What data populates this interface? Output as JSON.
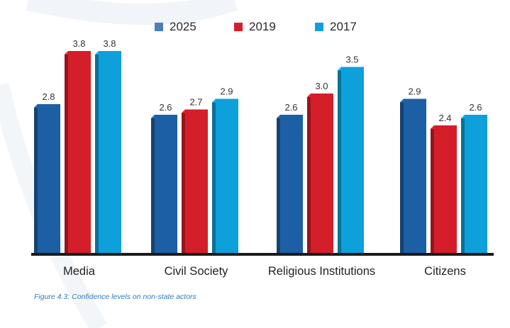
{
  "chart_data": {
    "type": "bar",
    "categories": [
      "Media",
      "Civil Society",
      "Religious Institutions",
      "Citizens"
    ],
    "series": [
      {
        "name": "2025",
        "values": [
          2.8,
          2.6,
          2.6,
          2.9
        ],
        "color": "#1d5fa4"
      },
      {
        "name": "2019",
        "values": [
          3.8,
          2.7,
          3.0,
          2.4
        ],
        "color": "#d41f2a"
      },
      {
        "name": "2017",
        "values": [
          3.8,
          2.9,
          3.5,
          2.6
        ],
        "color": "#0ea0da"
      }
    ],
    "value_labels": [
      [
        "2.8",
        "2.6",
        "2.6",
        "2.9"
      ],
      [
        "3.8",
        "2.7",
        "3.0",
        "2.4"
      ],
      [
        "3.8",
        "2.9",
        "3.5",
        "2.6"
      ]
    ],
    "ylim": [
      0,
      4
    ],
    "grid": false,
    "legend_position": "top-center"
  },
  "caption": "Figure 4.3: Confidence levels on non-state actors"
}
